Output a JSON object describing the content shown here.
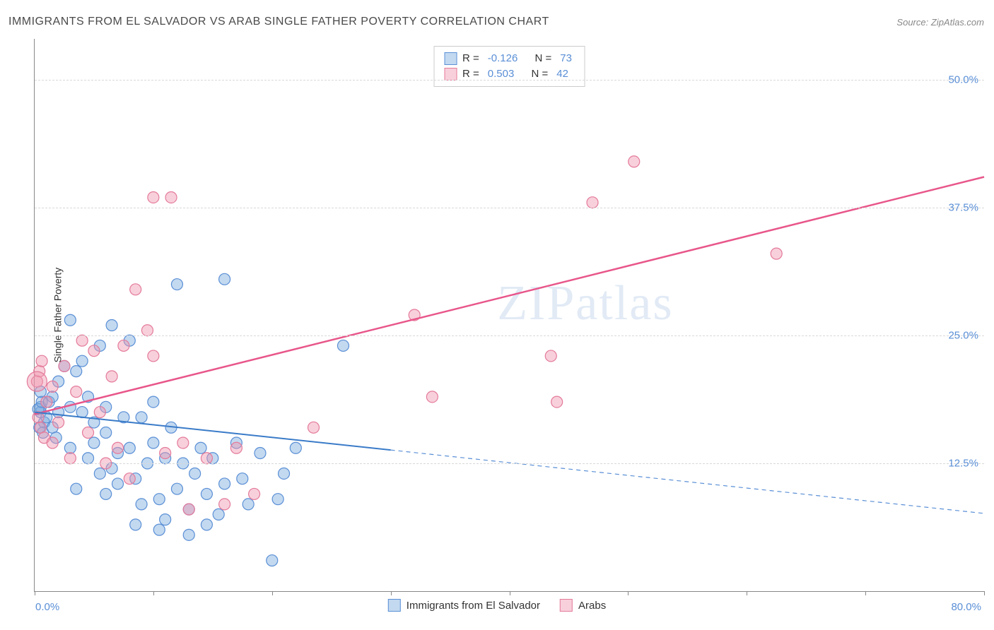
{
  "title": "IMMIGRANTS FROM EL SALVADOR VS ARAB SINGLE FATHER POVERTY CORRELATION CHART",
  "source_label": "Source:",
  "source_value": "ZipAtlas.com",
  "y_axis_label": "Single Father Poverty",
  "watermark": "ZIPatlas",
  "chart": {
    "type": "scatter",
    "xlim": [
      0,
      80
    ],
    "ylim": [
      0,
      54
    ],
    "x_ticks_minor": [
      0,
      10,
      20,
      30,
      40,
      50,
      60,
      70,
      80
    ],
    "y_gridlines": [
      12.5,
      25.0,
      37.5,
      50.0
    ],
    "y_tick_labels": [
      "12.5%",
      "25.0%",
      "37.5%",
      "50.0%"
    ],
    "x_tick_left": "0.0%",
    "x_tick_right": "80.0%",
    "background_color": "#ffffff",
    "grid_color": "#d8d8d8",
    "axis_color": "#888888",
    "label_color": "#5a8fd6",
    "series": [
      {
        "name": "Immigrants from El Salvador",
        "color_fill": "rgba(122, 170, 222, 0.45)",
        "color_stroke": "#5a8fd6",
        "R": "-0.126",
        "N": "73",
        "marker_radius": 8,
        "trend": {
          "x1": 0,
          "y1": 17.5,
          "x2": 30,
          "y2": 13.8,
          "x2_ext": 80,
          "y2_ext": 7.6,
          "solid_color": "#3a7bc8",
          "dash_color": "#5a8fd6",
          "width": 2
        },
        "points": [
          [
            0.5,
            17.5
          ],
          [
            0.5,
            18.0
          ],
          [
            0.8,
            16.5
          ],
          [
            0.3,
            17.8
          ],
          [
            0.6,
            18.5
          ],
          [
            0.5,
            19.5
          ],
          [
            0.4,
            16.0
          ],
          [
            0.7,
            15.5
          ],
          [
            1.0,
            17.0
          ],
          [
            1.2,
            18.5
          ],
          [
            1.5,
            16.0
          ],
          [
            1.5,
            19.0
          ],
          [
            1.8,
            15.0
          ],
          [
            2.0,
            17.5
          ],
          [
            2.0,
            20.5
          ],
          [
            2.5,
            22.0
          ],
          [
            3.0,
            18.0
          ],
          [
            3.5,
            21.5
          ],
          [
            3.0,
            14.0
          ],
          [
            4.0,
            17.5
          ],
          [
            4.5,
            19.0
          ],
          [
            5.0,
            16.5
          ],
          [
            5.0,
            14.5
          ],
          [
            5.5,
            24.0
          ],
          [
            6.0,
            15.5
          ],
          [
            6.0,
            18.0
          ],
          [
            6.5,
            12.0
          ],
          [
            7.0,
            13.5
          ],
          [
            7.0,
            10.5
          ],
          [
            7.5,
            17.0
          ],
          [
            8.0,
            24.5
          ],
          [
            8.0,
            14.0
          ],
          [
            8.5,
            11.0
          ],
          [
            9.0,
            17.0
          ],
          [
            9.0,
            8.5
          ],
          [
            9.5,
            12.5
          ],
          [
            10.0,
            14.5
          ],
          [
            10.0,
            18.5
          ],
          [
            10.5,
            9.0
          ],
          [
            11.0,
            13.0
          ],
          [
            11.0,
            7.0
          ],
          [
            11.5,
            16.0
          ],
          [
            12.0,
            10.0
          ],
          [
            12.0,
            30.0
          ],
          [
            12.5,
            12.5
          ],
          [
            13.0,
            8.0
          ],
          [
            13.5,
            11.5
          ],
          [
            14.0,
            14.0
          ],
          [
            14.5,
            9.5
          ],
          [
            15.0,
            13.0
          ],
          [
            15.5,
            7.5
          ],
          [
            16.0,
            10.5
          ],
          [
            16.0,
            30.5
          ],
          [
            17.0,
            14.5
          ],
          [
            17.5,
            11.0
          ],
          [
            18.0,
            8.5
          ],
          [
            19.0,
            13.5
          ],
          [
            20.0,
            3.0
          ],
          [
            20.5,
            9.0
          ],
          [
            21.0,
            11.5
          ],
          [
            22.0,
            14.0
          ],
          [
            10.5,
            6.0
          ],
          [
            8.5,
            6.5
          ],
          [
            6.5,
            26.0
          ],
          [
            4.0,
            22.5
          ],
          [
            3.0,
            26.5
          ],
          [
            26.0,
            24.0
          ],
          [
            13.0,
            5.5
          ],
          [
            14.5,
            6.5
          ],
          [
            5.5,
            11.5
          ],
          [
            6.0,
            9.5
          ],
          [
            4.5,
            13.0
          ],
          [
            3.5,
            10.0
          ]
        ]
      },
      {
        "name": "Arabs",
        "color_fill": "rgba(240, 150, 175, 0.45)",
        "color_stroke": "#e47a9a",
        "R": "0.503",
        "N": "42",
        "marker_radius": 8,
        "trend": {
          "x1": 0,
          "y1": 17.3,
          "x2": 80,
          "y2": 40.5,
          "solid_color": "#e8568a",
          "width": 2.5
        },
        "points": [
          [
            0.3,
            17.0
          ],
          [
            0.4,
            21.5
          ],
          [
            0.5,
            16.0
          ],
          [
            0.8,
            15.0
          ],
          [
            0.6,
            22.5
          ],
          [
            1.0,
            18.5
          ],
          [
            1.5,
            20.0
          ],
          [
            1.5,
            14.5
          ],
          [
            2.0,
            16.5
          ],
          [
            2.5,
            22.0
          ],
          [
            3.0,
            13.0
          ],
          [
            3.5,
            19.5
          ],
          [
            4.0,
            24.5
          ],
          [
            4.5,
            15.5
          ],
          [
            5.0,
            23.5
          ],
          [
            5.5,
            17.5
          ],
          [
            6.0,
            12.5
          ],
          [
            6.5,
            21.0
          ],
          [
            7.0,
            14.0
          ],
          [
            7.5,
            24.0
          ],
          [
            8.0,
            11.0
          ],
          [
            8.5,
            29.5
          ],
          [
            9.5,
            25.5
          ],
          [
            10.0,
            23.0
          ],
          [
            10.0,
            38.5
          ],
          [
            11.0,
            13.5
          ],
          [
            11.5,
            38.5
          ],
          [
            12.5,
            14.5
          ],
          [
            13.0,
            8.0
          ],
          [
            14.5,
            13.0
          ],
          [
            16.0,
            8.5
          ],
          [
            17.0,
            14.0
          ],
          [
            18.5,
            9.5
          ],
          [
            23.5,
            16.0
          ],
          [
            32.0,
            27.0
          ],
          [
            33.5,
            19.0
          ],
          [
            43.5,
            23.0
          ],
          [
            44.0,
            18.5
          ],
          [
            47.0,
            38.0
          ],
          [
            50.5,
            42.0
          ],
          [
            62.5,
            33.0
          ],
          [
            0.2,
            20.5
          ]
        ]
      }
    ]
  },
  "legend_labels": {
    "R": "R =",
    "N": "N ="
  },
  "bottom_legend": [
    "Immigrants from El Salvador",
    "Arabs"
  ]
}
